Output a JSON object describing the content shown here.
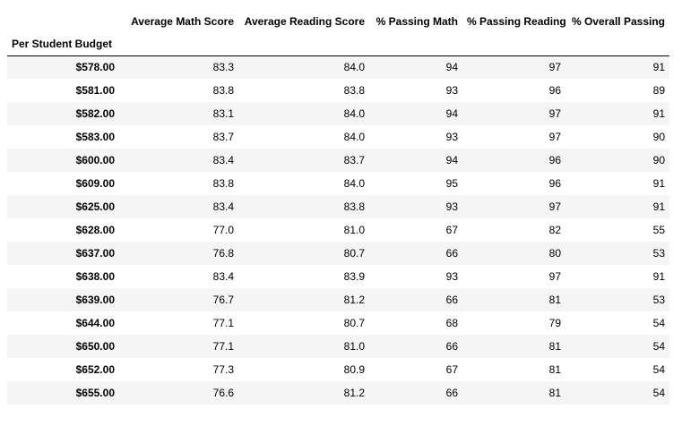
{
  "table": {
    "index_name": "Per Student Budget",
    "columns": [
      "Average Math Score",
      "Average Reading Score",
      "% Passing Math",
      "% Passing Reading",
      "% Overall Passing"
    ],
    "rows": [
      {
        "index": "$578.00",
        "values": [
          "83.3",
          "84.0",
          "94",
          "97",
          "91"
        ]
      },
      {
        "index": "$581.00",
        "values": [
          "83.8",
          "83.8",
          "93",
          "96",
          "89"
        ]
      },
      {
        "index": "$582.00",
        "values": [
          "83.1",
          "84.0",
          "94",
          "97",
          "91"
        ]
      },
      {
        "index": "$583.00",
        "values": [
          "83.7",
          "84.0",
          "93",
          "97",
          "90"
        ]
      },
      {
        "index": "$600.00",
        "values": [
          "83.4",
          "83.7",
          "94",
          "96",
          "90"
        ]
      },
      {
        "index": "$609.00",
        "values": [
          "83.8",
          "84.0",
          "95",
          "96",
          "91"
        ]
      },
      {
        "index": "$625.00",
        "values": [
          "83.4",
          "83.8",
          "93",
          "97",
          "91"
        ]
      },
      {
        "index": "$628.00",
        "values": [
          "77.0",
          "81.0",
          "67",
          "82",
          "55"
        ]
      },
      {
        "index": "$637.00",
        "values": [
          "76.8",
          "80.7",
          "66",
          "80",
          "53"
        ]
      },
      {
        "index": "$638.00",
        "values": [
          "83.4",
          "83.9",
          "93",
          "97",
          "91"
        ]
      },
      {
        "index": "$639.00",
        "values": [
          "76.7",
          "81.2",
          "66",
          "81",
          "53"
        ]
      },
      {
        "index": "$644.00",
        "values": [
          "77.1",
          "80.7",
          "68",
          "79",
          "54"
        ]
      },
      {
        "index": "$650.00",
        "values": [
          "77.1",
          "81.0",
          "66",
          "81",
          "54"
        ]
      },
      {
        "index": "$652.00",
        "values": [
          "77.3",
          "80.9",
          "67",
          "81",
          "54"
        ]
      },
      {
        "index": "$655.00",
        "values": [
          "76.6",
          "81.2",
          "66",
          "81",
          "54"
        ]
      }
    ]
  }
}
